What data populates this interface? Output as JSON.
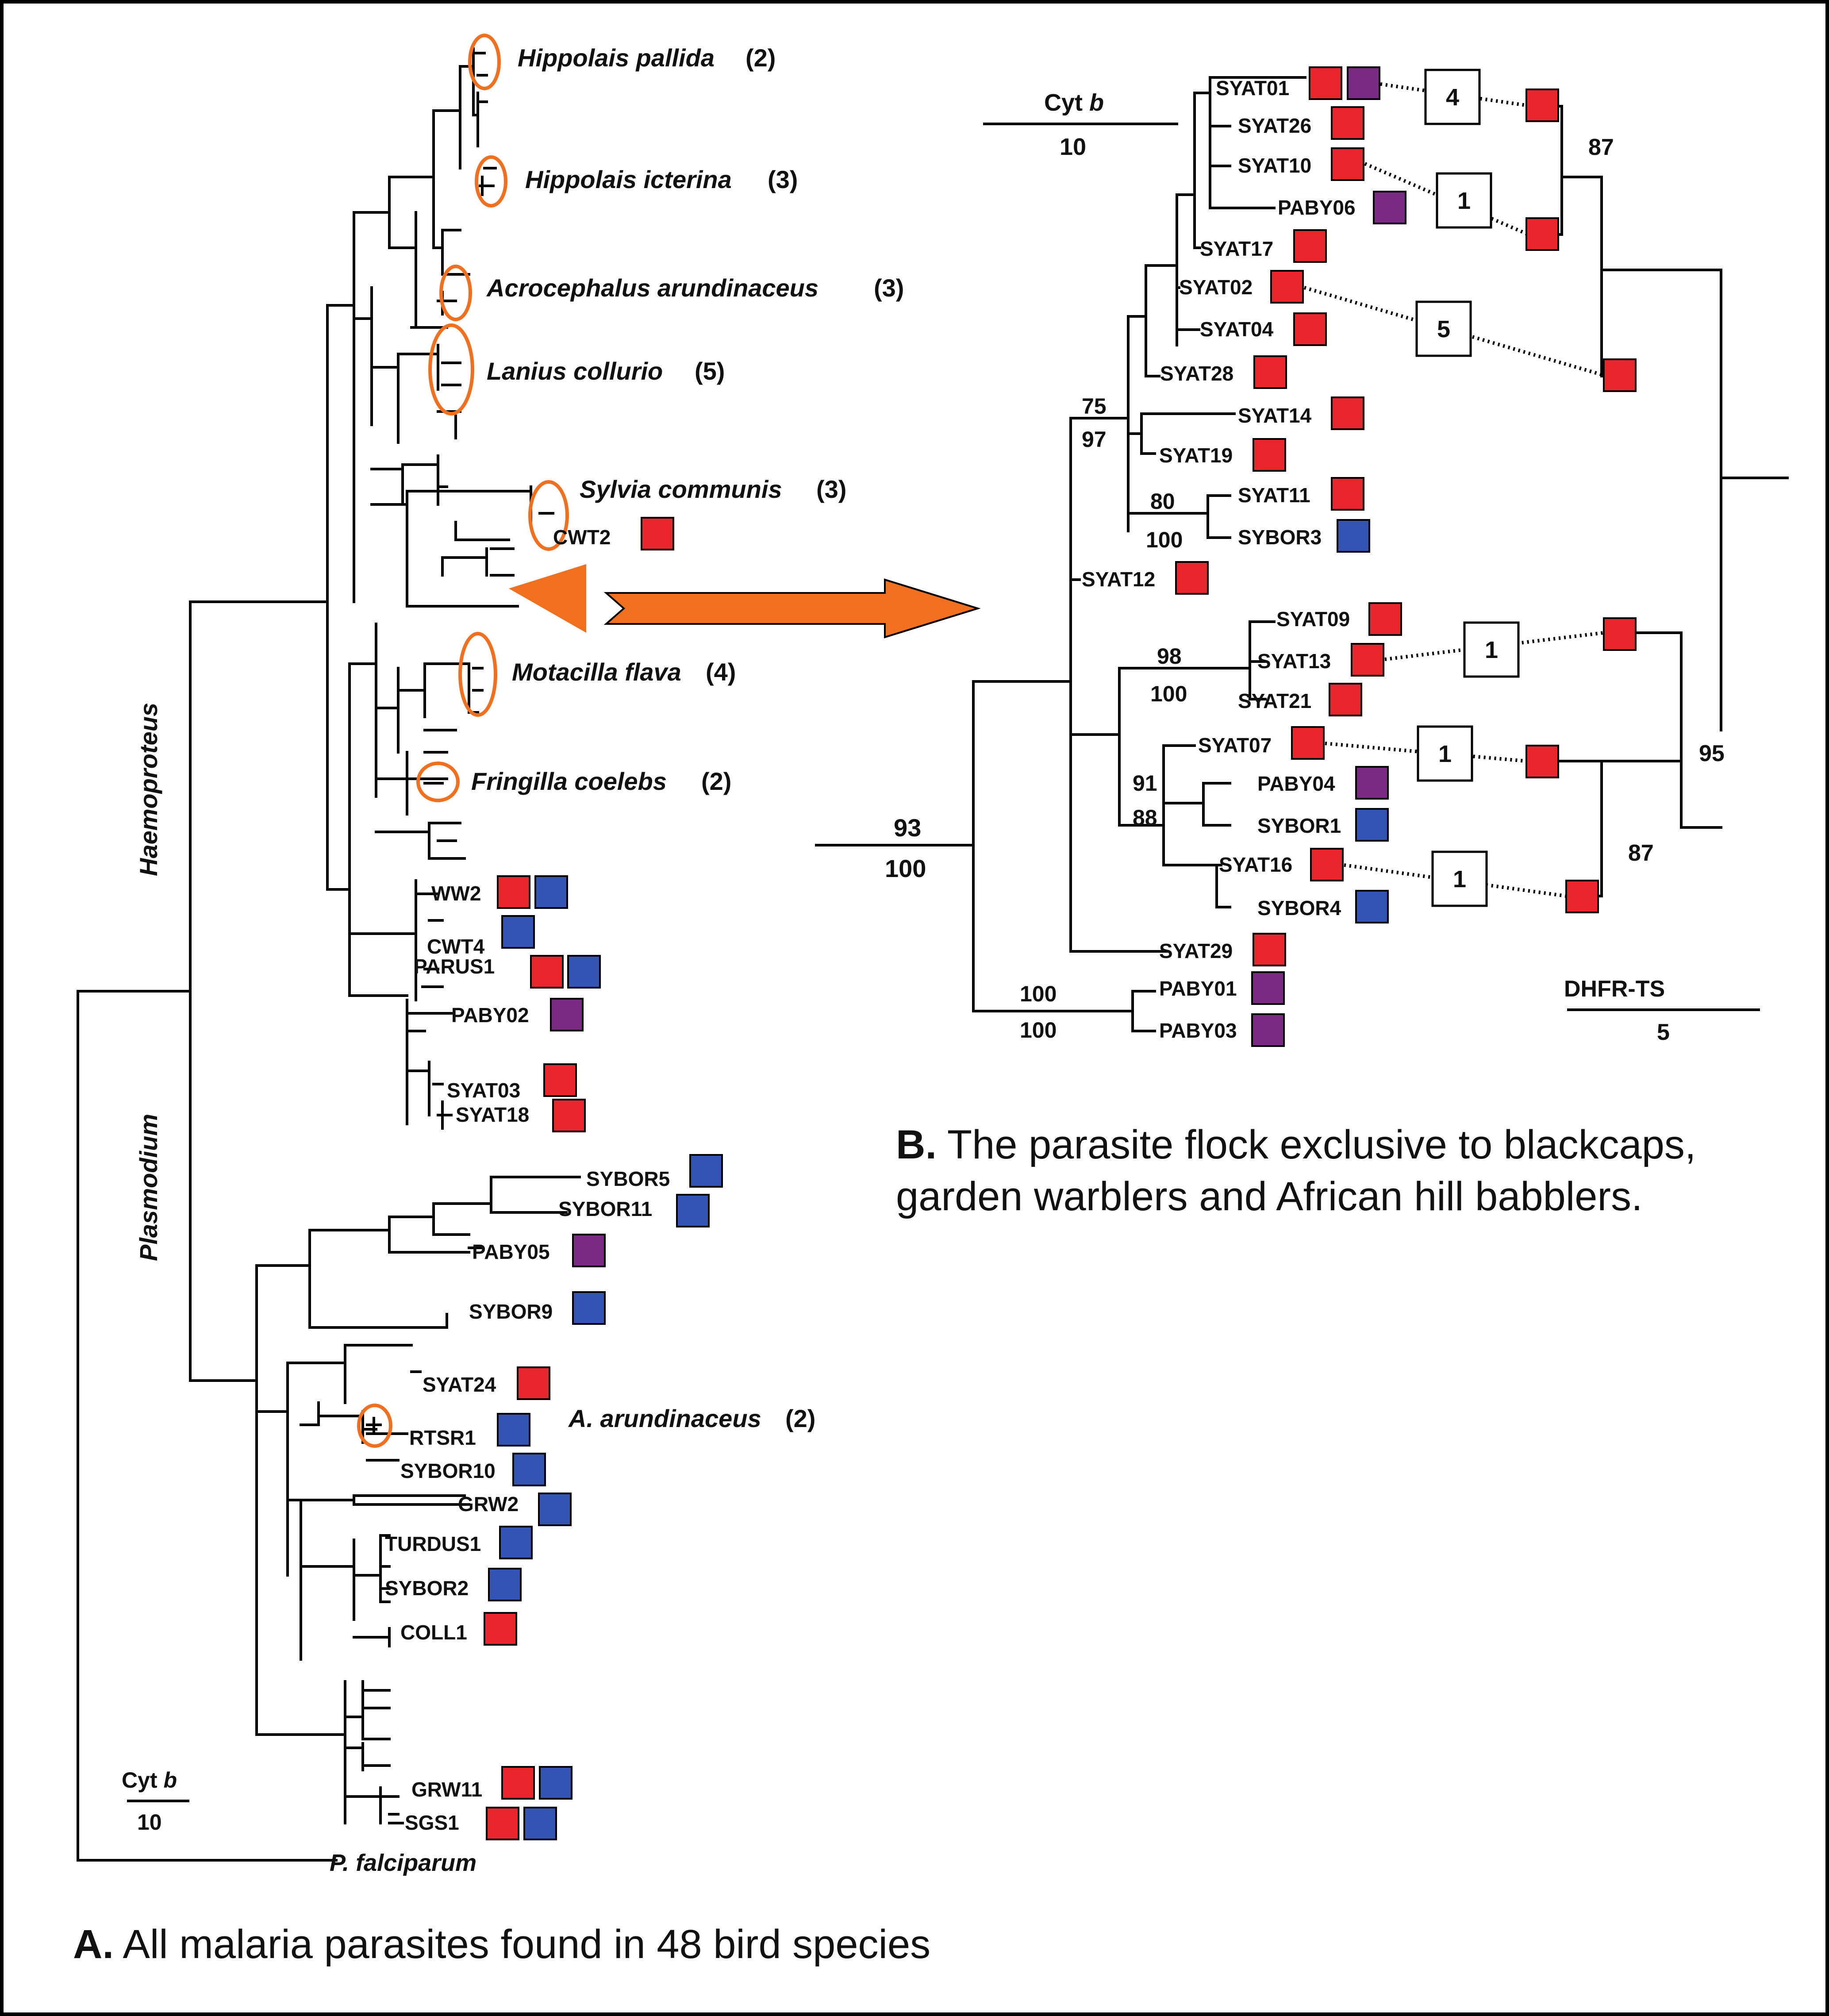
{
  "colors": {
    "red": "#e8262b",
    "blue": "#3454b4",
    "purple": "#7a2a82",
    "orange": "#f07020",
    "frame": "#000000"
  },
  "panel_a": {
    "genus_haemoproteus": "Haemoproteus",
    "genus_plasmodium": "Plasmodium",
    "scale_label": "Cyt",
    "scale_label_italic": "b",
    "scale_value": "10",
    "outgroup": "P. falciparum",
    "caption_bold": "A.",
    "caption_text": " All malaria parasites found in 48 bird species",
    "host_species": [
      {
        "name": "Hippolais pallida",
        "count": "(2)"
      },
      {
        "name": "Hippolais icterina",
        "count": "(3)"
      },
      {
        "name": "Acrocephalus arundinaceus",
        "count": "(3)"
      },
      {
        "name": "Lanius collurio",
        "count": "(5)"
      },
      {
        "name": "Sylvia communis",
        "count": "(3)"
      },
      {
        "name": "Motacilla flava",
        "count": "(4)"
      },
      {
        "name": "Fringilla coelebs",
        "count": "(2)"
      },
      {
        "name": "A. arundinaceus",
        "count": "(2)"
      }
    ],
    "lineages": [
      {
        "label": "CWT2",
        "hosts": [
          "red"
        ]
      },
      {
        "label": "WW2",
        "hosts": [
          "red",
          "blue"
        ]
      },
      {
        "label": "CWT4",
        "hosts": [
          "blue"
        ]
      },
      {
        "label": "PARUS1",
        "hosts": [
          "red",
          "blue"
        ]
      },
      {
        "label": "PABY02",
        "hosts": [
          "purple"
        ]
      },
      {
        "label": "SYAT03",
        "hosts": [
          "red"
        ]
      },
      {
        "label": "SYAT18",
        "hosts": [
          "red"
        ]
      },
      {
        "label": "SYBOR5",
        "hosts": [
          "blue"
        ]
      },
      {
        "label": "SYBOR11",
        "hosts": [
          "blue"
        ]
      },
      {
        "label": "PABY05",
        "hosts": [
          "purple"
        ]
      },
      {
        "label": "SYBOR9",
        "hosts": [
          "blue"
        ]
      },
      {
        "label": "SYAT24",
        "hosts": [
          "red"
        ]
      },
      {
        "label": "RTSR1",
        "hosts": [
          "blue"
        ]
      },
      {
        "label": "SYBOR10",
        "hosts": [
          "blue"
        ]
      },
      {
        "label": "GRW2",
        "hosts": [
          "blue"
        ]
      },
      {
        "label": "TURDUS1",
        "hosts": [
          "blue"
        ]
      },
      {
        "label": "SYBOR2",
        "hosts": [
          "blue"
        ]
      },
      {
        "label": "COLL1",
        "hosts": [
          "red"
        ]
      },
      {
        "label": "GRW11",
        "hosts": [
          "red",
          "blue"
        ]
      },
      {
        "label": "SGS1",
        "hosts": [
          "red",
          "blue"
        ]
      }
    ]
  },
  "panel_b": {
    "scale_label": "Cyt",
    "scale_label_italic": "b",
    "scale_value": "10",
    "scale2_label": "DHFR-TS",
    "scale2_value": "5",
    "caption_bold": "B.",
    "caption_line1": " The parasite flock exclusive to blackcaps,",
    "caption_line2": "garden warblers and African hill babblers.",
    "lineages": [
      {
        "label": "SYAT01",
        "hosts": [
          "red",
          "purple"
        ]
      },
      {
        "label": "SYAT26",
        "hosts": [
          "red"
        ]
      },
      {
        "label": "SYAT10",
        "hosts": [
          "red"
        ]
      },
      {
        "label": "PABY06",
        "hosts": [
          "purple"
        ]
      },
      {
        "label": "SYAT17",
        "hosts": [
          "red"
        ]
      },
      {
        "label": "SYAT02",
        "hosts": [
          "red"
        ]
      },
      {
        "label": "SYAT04",
        "hosts": [
          "red"
        ]
      },
      {
        "label": "SYAT28",
        "hosts": [
          "red"
        ]
      },
      {
        "label": "SYAT14",
        "hosts": [
          "red"
        ]
      },
      {
        "label": "SYAT19",
        "hosts": [
          "red"
        ]
      },
      {
        "label": "SYAT11",
        "hosts": [
          "red"
        ]
      },
      {
        "label": "SYBOR3",
        "hosts": [
          "blue"
        ]
      },
      {
        "label": "SYAT12",
        "hosts": [
          "red"
        ]
      },
      {
        "label": "SYAT09",
        "hosts": [
          "red"
        ]
      },
      {
        "label": "SYAT13",
        "hosts": [
          "red"
        ]
      },
      {
        "label": "SYAT21",
        "hosts": [
          "red"
        ]
      },
      {
        "label": "SYAT07",
        "hosts": [
          "red"
        ]
      },
      {
        "label": "PABY04",
        "hosts": [
          "purple"
        ]
      },
      {
        "label": "SYBOR1",
        "hosts": [
          "blue"
        ]
      },
      {
        "label": "SYAT16",
        "hosts": [
          "red"
        ]
      },
      {
        "label": "SYBOR4",
        "hosts": [
          "blue"
        ]
      },
      {
        "label": "SYAT29",
        "hosts": [
          "red"
        ]
      },
      {
        "label": "PABY01",
        "hosts": [
          "purple"
        ]
      },
      {
        "label": "PABY03",
        "hosts": [
          "purple"
        ]
      }
    ],
    "support_values": [
      "75",
      "97",
      "80",
      "100",
      "98",
      "100",
      "91",
      "88",
      "93",
      "100",
      "100",
      "100",
      "87",
      "95",
      "87"
    ],
    "differences": [
      "4",
      "1",
      "5",
      "1",
      "1",
      "1"
    ]
  }
}
